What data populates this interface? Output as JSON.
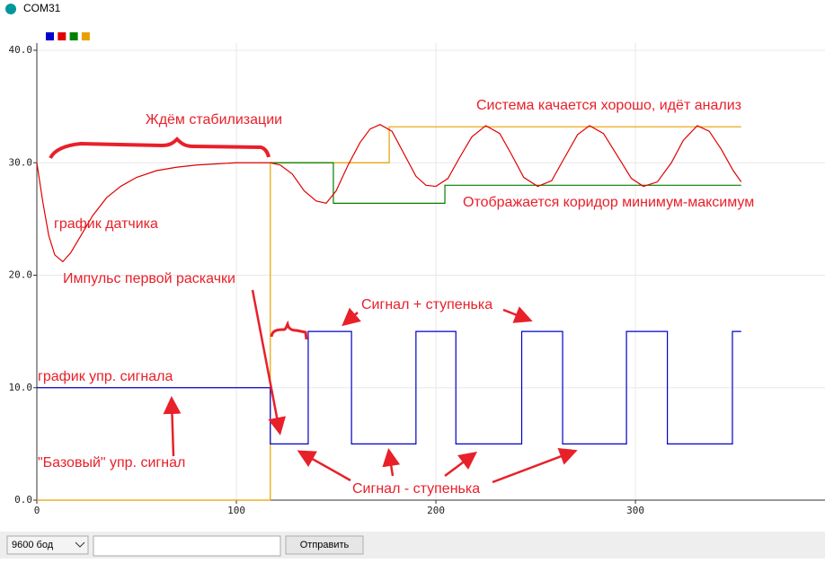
{
  "window": {
    "title": "COM31"
  },
  "chart_data": {
    "type": "line",
    "xlim": [
      0,
      395
    ],
    "xticks": [
      0,
      100,
      200,
      300
    ],
    "ylim": [
      0,
      40
    ],
    "yticks": [
      {
        "value": 0,
        "label": "0.0"
      },
      {
        "value": 10,
        "label": "10.0"
      },
      {
        "value": 20,
        "label": "20.0"
      },
      {
        "value": 30,
        "label": "30.0"
      },
      {
        "value": 40,
        "label": "40.0"
      }
    ],
    "grid": true,
    "series": [
      {
        "color": "#0000c8",
        "x": [
          0,
          117,
          117,
          136,
          136,
          157.7,
          157.7,
          190,
          190,
          210,
          210,
          243,
          243,
          263.5,
          263.5,
          295.5,
          295.5,
          316,
          316,
          348.6,
          348.6,
          353
        ],
        "values": [
          10,
          10,
          5,
          5,
          15,
          15,
          5,
          5,
          15,
          15,
          5,
          5,
          15,
          15,
          5,
          5,
          15,
          15,
          5,
          5,
          15,
          15
        ]
      },
      {
        "color": "#e00000",
        "x": [
          0,
          3,
          6,
          9,
          13,
          17,
          22,
          28,
          35,
          42,
          50,
          60,
          70,
          80,
          90,
          100,
          110,
          117,
          122,
          128,
          134,
          140,
          145,
          150,
          156,
          162,
          167,
          172,
          178,
          184,
          190,
          195,
          200,
          206,
          212,
          218,
          225,
          232,
          238,
          244,
          251,
          258,
          264,
          271,
          277,
          284,
          291,
          298,
          304,
          311,
          318,
          324,
          331,
          337,
          343,
          349,
          353
        ],
        "values": [
          30,
          26.5,
          23.5,
          21.8,
          21.2,
          22,
          23.5,
          25.3,
          26.9,
          27.9,
          28.7,
          29.3,
          29.6,
          29.8,
          29.9,
          30,
          30,
          30,
          29.8,
          29,
          27.5,
          26.6,
          26.4,
          27.5,
          29.8,
          31.8,
          33,
          33.4,
          32.8,
          30.8,
          28.8,
          28,
          27.9,
          28.6,
          30.5,
          32.3,
          33.3,
          32.6,
          30.7,
          28.7,
          27.9,
          28.4,
          30.3,
          32.5,
          33.3,
          32.6,
          30.6,
          28.6,
          27.9,
          28.3,
          30,
          32,
          33.3,
          32.8,
          31.2,
          29.3,
          28.3
        ]
      },
      {
        "color": "#008000",
        "x": [
          117,
          148.6,
          148.6,
          204.5,
          204.5,
          353
        ],
        "values": [
          30,
          30,
          26.4,
          26.4,
          28,
          28
        ]
      },
      {
        "color": "#e8a000",
        "x": [
          0,
          117,
          117,
          176.6,
          176.6,
          353
        ],
        "values": [
          0,
          0,
          30,
          30,
          33.2,
          33.2
        ]
      }
    ],
    "annotations": [
      "Ждём стабилизации",
      "Система качается хорошо, идёт анализ",
      "график датчика",
      "Отображается коридор минимум-максимум",
      "Импульс первой раскачки",
      "Сигнал + ступенька",
      "график упр. сигнала",
      "\"Базовый\" упр. сигнал",
      "Сигнал - ступенька"
    ]
  },
  "controls": {
    "baud": "9600 бод",
    "send": "Отправить"
  }
}
